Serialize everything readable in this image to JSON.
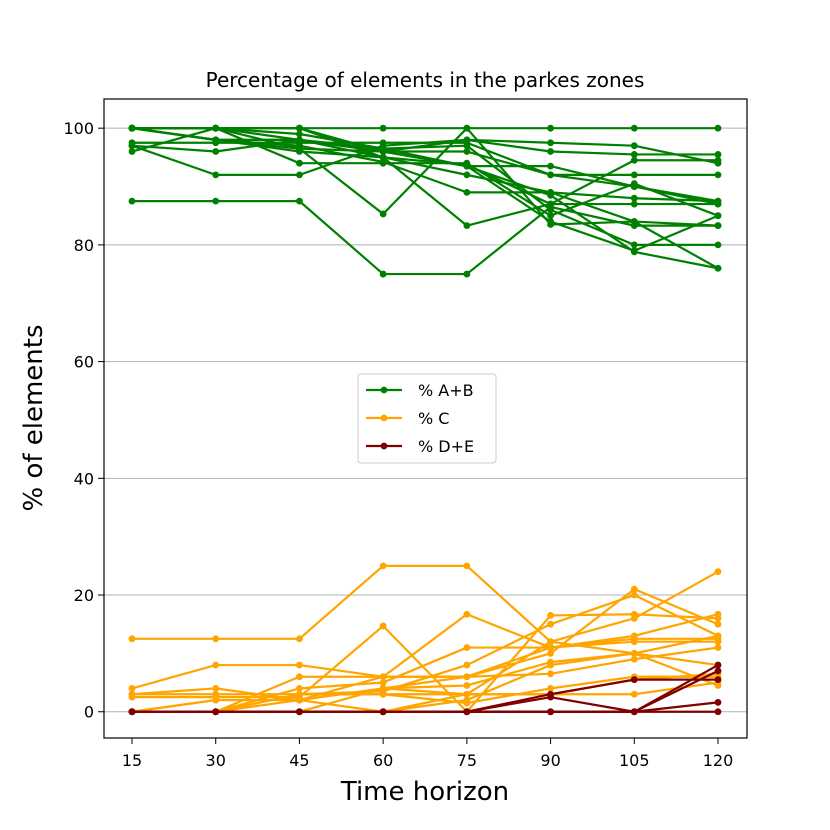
{
  "chart_data": {
    "type": "line",
    "title": "Percentage of elements in the parkes zones",
    "xlabel": "Time horizon",
    "ylabel": "% of elements",
    "x": [
      15,
      30,
      45,
      60,
      75,
      90,
      105,
      120
    ],
    "xticks": [
      "15",
      "30",
      "45",
      "60",
      "75",
      "90",
      "105",
      "120"
    ],
    "yticks": [
      "0",
      "20",
      "40",
      "60",
      "80",
      "100"
    ],
    "ylim": [
      -4.5,
      105
    ],
    "grid": "horizontal",
    "legend_position": "center",
    "legend": [
      {
        "label": "% A+B",
        "color": "#008000"
      },
      {
        "label": "% C",
        "color": "#FFA500"
      },
      {
        "label": "% D+E",
        "color": "#800000"
      }
    ],
    "series": [
      {
        "group": "% A+B",
        "color": "#008000",
        "values": [
          100,
          100,
          100,
          100,
          100,
          100,
          100,
          100
        ]
      },
      {
        "group": "% A+B",
        "color": "#008000",
        "values": [
          100,
          100,
          98,
          96,
          98,
          97.5,
          97,
          94
        ]
      },
      {
        "group": "% A+B",
        "color": "#008000",
        "values": [
          100,
          98,
          96,
          95,
          92,
          89,
          84,
          76
        ]
      },
      {
        "group": "% A+B",
        "color": "#008000",
        "values": [
          97.5,
          97.5,
          97.5,
          97.5,
          97.5,
          92,
          90,
          87
        ]
      },
      {
        "group": "% A+B",
        "color": "#008000",
        "values": [
          97,
          92,
          92,
          97,
          98,
          96,
          95.5,
          95.5
        ]
      },
      {
        "group": "% A+B",
        "color": "#008000",
        "values": [
          96,
          100,
          99,
          96.5,
          97,
          86,
          80,
          80
        ]
      },
      {
        "group": "% A+B",
        "color": "#008000",
        "values": [
          97,
          96,
          98,
          95,
          83.3,
          87,
          87,
          87
        ]
      },
      {
        "group": "% A+B",
        "color": "#008000",
        "values": [
          100,
          98,
          96.5,
          85.3,
          100,
          83.5,
          84,
          83.3
        ]
      },
      {
        "group": "% A+B",
        "color": "#008000",
        "values": [
          87.5,
          87.5,
          87.5,
          75,
          75,
          86.5,
          83.3,
          83.3
        ]
      },
      {
        "group": "% A+B",
        "color": "#008000",
        "values": [
          100,
          100,
          94,
          94,
          94,
          85,
          90.5,
          85
        ]
      },
      {
        "group": "% A+B",
        "color": "#008000",
        "values": [
          100,
          98,
          97,
          94.2,
          89,
          89,
          88,
          87.5
        ]
      },
      {
        "group": "% A+B",
        "color": "#008000",
        "values": [
          100,
          98,
          98,
          96.5,
          93.5,
          93.5,
          90,
          87.5
        ]
      },
      {
        "group": "% A+B",
        "color": "#008000",
        "values": [
          100,
          100,
          96.5,
          96,
          93.5,
          84,
          79,
          85
        ]
      },
      {
        "group": "% A+B",
        "color": "#008000",
        "values": [
          100,
          98,
          98,
          96,
          96,
          92,
          92,
          92
        ]
      },
      {
        "group": "% A+B",
        "color": "#008000",
        "values": [
          100,
          100,
          100,
          96,
          93.5,
          88.5,
          78.8,
          76
        ]
      },
      {
        "group": "% A+B",
        "color": "#008000",
        "values": [
          100,
          100,
          100,
          95,
          93.7,
          87,
          94.5,
          94.5
        ]
      },
      {
        "group": "% C",
        "color": "#FFA500",
        "values": [
          12.5,
          12.5,
          12.5,
          25,
          25,
          12,
          16,
          24
        ]
      },
      {
        "group": "% C",
        "color": "#FFA500",
        "values": [
          4,
          8,
          8,
          6,
          16.7,
          11,
          13,
          16.7
        ]
      },
      {
        "group": "% C",
        "color": "#FFA500",
        "values": [
          2.5,
          2.5,
          2.5,
          14.7,
          0,
          16.5,
          16.7,
          16
        ]
      },
      {
        "group": "% C",
        "color": "#FFA500",
        "values": [
          3,
          4,
          2,
          4,
          6,
          10,
          21,
          15
        ]
      },
      {
        "group": "% C",
        "color": "#FFA500",
        "values": [
          0,
          0,
          3,
          3.5,
          8,
          15,
          20,
          13
        ]
      },
      {
        "group": "% C",
        "color": "#FFA500",
        "values": [
          0,
          0,
          6,
          6,
          6,
          11,
          12,
          12
        ]
      },
      {
        "group": "% C",
        "color": "#FFA500",
        "values": [
          0,
          0,
          4,
          5,
          11,
          11,
          12.5,
          12.5
        ]
      },
      {
        "group": "% C",
        "color": "#FFA500",
        "values": [
          0,
          2,
          2,
          0,
          3,
          12,
          10,
          13
        ]
      },
      {
        "group": "% C",
        "color": "#FFA500",
        "values": [
          0,
          0,
          0,
          0,
          2,
          8,
          10,
          8
        ]
      },
      {
        "group": "% C",
        "color": "#FFA500",
        "values": [
          0,
          0,
          3,
          3,
          1.5,
          4,
          6,
          6
        ]
      },
      {
        "group": "% C",
        "color": "#FFA500",
        "values": [
          0,
          2,
          2,
          6,
          6,
          6.5,
          9,
          11
        ]
      },
      {
        "group": "% C",
        "color": "#FFA500",
        "values": [
          3,
          3,
          3,
          3,
          3,
          3,
          3,
          5
        ]
      },
      {
        "group": "% C",
        "color": "#FFA500",
        "values": [
          0,
          0,
          0,
          4,
          3,
          3,
          5.5,
          6.5
        ]
      },
      {
        "group": "% C",
        "color": "#FFA500",
        "values": [
          0,
          0,
          2,
          4,
          4.5,
          8.5,
          10,
          4.5
        ]
      },
      {
        "group": "% D+E",
        "color": "#800000",
        "values": [
          0,
          0,
          0,
          0,
          0,
          3,
          5.5,
          5.5
        ]
      },
      {
        "group": "% D+E",
        "color": "#800000",
        "values": [
          0,
          0,
          0,
          0,
          0,
          0,
          0,
          8
        ]
      },
      {
        "group": "% D+E",
        "color": "#800000",
        "values": [
          0,
          0,
          0,
          0,
          0,
          0,
          0,
          1.6
        ]
      },
      {
        "group": "% D+E",
        "color": "#800000",
        "values": [
          0,
          0,
          0,
          0,
          0,
          0,
          0,
          0
        ]
      },
      {
        "group": "% D+E",
        "color": "#800000",
        "values": [
          0,
          0,
          0,
          0,
          0,
          2.5,
          0,
          7
        ]
      }
    ]
  }
}
